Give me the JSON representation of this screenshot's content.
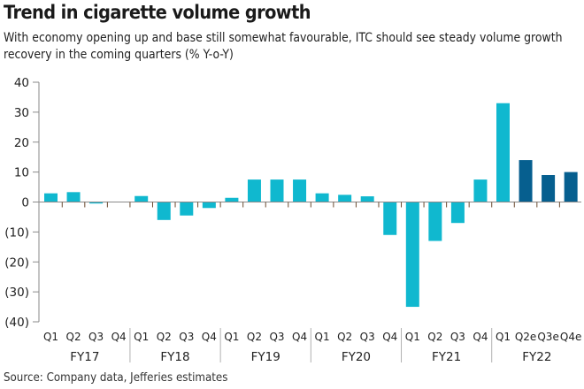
{
  "chart_data": {
    "type": "bar",
    "title": "Trend in cigarette volume growth",
    "subtitle": "With economy opening up and base still somewhat favourable, ITC should see steady volume growth recovery in the coming quarters (% Y-o-Y)",
    "source": "Source: Company data, Jefferies estimates",
    "xlabel": "",
    "ylabel": "",
    "ylim": [
      -40,
      40
    ],
    "yticks": [
      40,
      30,
      20,
      10,
      0,
      -10,
      -20,
      -30,
      -40
    ],
    "ytick_labels": [
      "40",
      "30",
      "20",
      "10",
      "0",
      "(10)",
      "(20)",
      "(30)",
      "(40)"
    ],
    "grid": false,
    "groups": [
      {
        "name": "FY17",
        "quarters": [
          "Q1",
          "Q2",
          "Q3",
          "Q4"
        ],
        "values": [
          2.9,
          3.3,
          -0.5,
          0
        ],
        "estimate": [
          false,
          false,
          false,
          false
        ]
      },
      {
        "name": "FY18",
        "quarters": [
          "Q1",
          "Q2",
          "Q3",
          "Q4"
        ],
        "values": [
          2.0,
          -6.0,
          -4.5,
          -2.0
        ],
        "estimate": [
          false,
          false,
          false,
          false
        ]
      },
      {
        "name": "FY19",
        "quarters": [
          "Q1",
          "Q2",
          "Q3",
          "Q4"
        ],
        "values": [
          1.4,
          7.5,
          7.5,
          7.5
        ],
        "estimate": [
          false,
          false,
          false,
          false
        ]
      },
      {
        "name": "FY20",
        "quarters": [
          "Q1",
          "Q2",
          "Q3",
          "Q4"
        ],
        "values": [
          2.9,
          2.4,
          1.9,
          -11.0
        ],
        "estimate": [
          false,
          false,
          false,
          false
        ]
      },
      {
        "name": "FY21",
        "quarters": [
          "Q1",
          "Q2",
          "Q3",
          "Q4"
        ],
        "values": [
          -35.0,
          -13.0,
          -7.0,
          7.5
        ],
        "estimate": [
          false,
          false,
          false,
          false
        ]
      },
      {
        "name": "FY22",
        "quarters": [
          "Q1",
          "Q2e",
          "Q3e",
          "Q4e"
        ],
        "values": [
          33.0,
          14.0,
          9.0,
          10.0
        ],
        "estimate": [
          false,
          true,
          true,
          true
        ]
      }
    ],
    "colors": {
      "actual": "#10b8cf",
      "estimate": "#065f8f",
      "axis": "#8a8a8a",
      "tick": "#6b4a2e"
    }
  }
}
